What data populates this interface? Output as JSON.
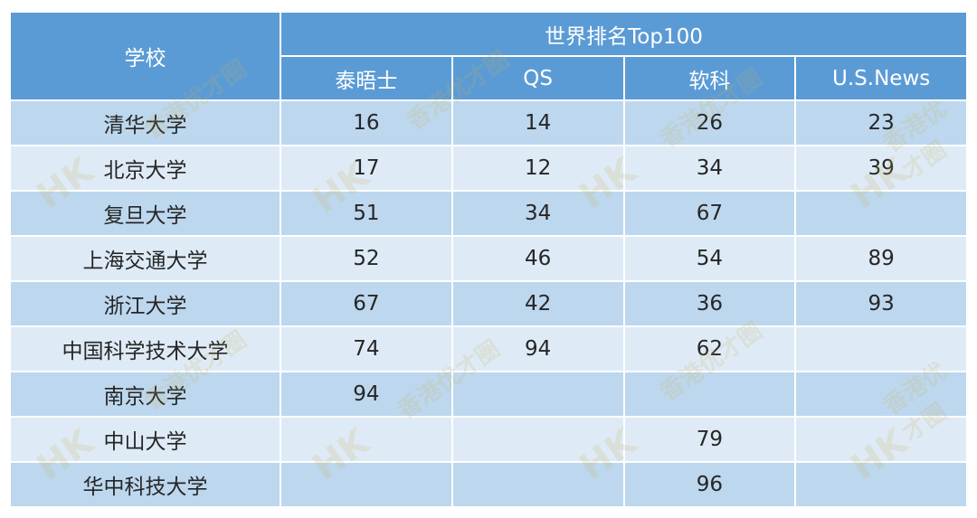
{
  "table": {
    "school_header": "学校",
    "group_header": "世界排名Top100",
    "columns": [
      "泰晤士",
      "QS",
      "软科",
      "U.S.News"
    ],
    "rows": [
      {
        "school": "清华大学",
        "cells": [
          "16",
          "14",
          "26",
          "23"
        ]
      },
      {
        "school": "北京大学",
        "cells": [
          "17",
          "12",
          "34",
          "39"
        ]
      },
      {
        "school": "复旦大学",
        "cells": [
          "51",
          "34",
          "67",
          ""
        ]
      },
      {
        "school": "上海交通大学",
        "cells": [
          "52",
          "46",
          "54",
          "89"
        ]
      },
      {
        "school": "浙江大学",
        "cells": [
          "67",
          "42",
          "36",
          "93"
        ]
      },
      {
        "school": "中国科学技术大学",
        "cells": [
          "74",
          "94",
          "62",
          ""
        ]
      },
      {
        "school": "南京大学",
        "cells": [
          "94",
          "",
          "",
          ""
        ]
      },
      {
        "school": "中山大学",
        "cells": [
          "",
          "",
          "79",
          ""
        ]
      },
      {
        "school": "华中科技大学",
        "cells": [
          "",
          "",
          "96",
          ""
        ]
      }
    ]
  },
  "watermark": {
    "logo_text": "HK",
    "slogan": "香港优才圈"
  },
  "colors": {
    "header_bg": "#5b9bd5",
    "row_dark": "#bdd7ee",
    "row_light": "#deebf7"
  }
}
